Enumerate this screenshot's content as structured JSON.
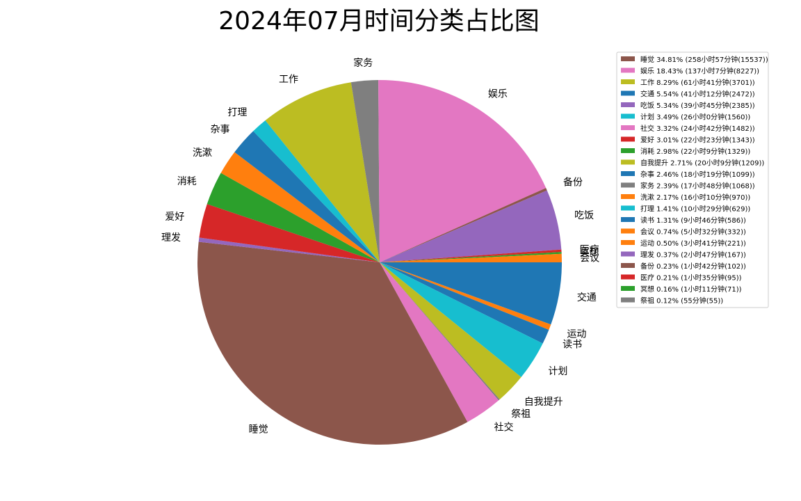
{
  "chart_data": {
    "type": "pie",
    "title": "2024年07月时间分类占比图",
    "start_angle_deg": 0,
    "direction": "clockwise",
    "legend_position": "top-right",
    "slices": [
      {
        "label": "睡觉",
        "value": 15537,
        "percent": 34.81,
        "legend": "睡觉 34.81% (258小时57分钟(15537))",
        "color": "#8c564b"
      },
      {
        "label": "娱乐",
        "value": 8227,
        "percent": 18.43,
        "legend": "娱乐 18.43% (137小时7分钟(8227))",
        "color": "#e377c2"
      },
      {
        "label": "工作",
        "value": 3701,
        "percent": 8.29,
        "legend": "工作 8.29% (61小时41分钟(3701))",
        "color": "#bcbd22"
      },
      {
        "label": "交通",
        "value": 2472,
        "percent": 5.54,
        "legend": "交通 5.54% (41小时12分钟(2472))",
        "color": "#1f77b4"
      },
      {
        "label": "吃饭",
        "value": 2385,
        "percent": 5.34,
        "legend": "吃饭 5.34% (39小时45分钟(2385))",
        "color": "#9467bd"
      },
      {
        "label": "计划",
        "value": 1560,
        "percent": 3.49,
        "legend": "计划 3.49% (26小时0分钟(1560))",
        "color": "#17becf"
      },
      {
        "label": "社交",
        "value": 1482,
        "percent": 3.32,
        "legend": "社交 3.32% (24小时42分钟(1482))",
        "color": "#e377c2"
      },
      {
        "label": "爱好",
        "value": 1343,
        "percent": 3.01,
        "legend": "爱好 3.01% (22小时23分钟(1343))",
        "color": "#d62728"
      },
      {
        "label": "消耗",
        "value": 1329,
        "percent": 2.98,
        "legend": "消耗 2.98% (22小时9分钟(1329))",
        "color": "#2ca02c"
      },
      {
        "label": "自我提升",
        "value": 1209,
        "percent": 2.71,
        "legend": "自我提升 2.71% (20小时9分钟(1209))",
        "color": "#bcbd22"
      },
      {
        "label": "杂事",
        "value": 1099,
        "percent": 2.46,
        "legend": "杂事 2.46% (18小时19分钟(1099))",
        "color": "#1f77b4"
      },
      {
        "label": "家务",
        "value": 1068,
        "percent": 2.39,
        "legend": "家务 2.39% (17小时48分钟(1068))",
        "color": "#7f7f7f"
      },
      {
        "label": "洗漱",
        "value": 970,
        "percent": 2.17,
        "legend": "洗漱 2.17% (16小时10分钟(970))",
        "color": "#ff7f0e"
      },
      {
        "label": "打理",
        "value": 629,
        "percent": 1.41,
        "legend": "打理 1.41% (10小时29分钟(629))",
        "color": "#17becf"
      },
      {
        "label": "读书",
        "value": 586,
        "percent": 1.31,
        "legend": "读书 1.31% (9小时46分钟(586))",
        "color": "#1f77b4"
      },
      {
        "label": "会议",
        "value": 332,
        "percent": 0.74,
        "legend": "会议 0.74% (5小时32分钟(332))",
        "color": "#ff7f0e"
      },
      {
        "label": "运动",
        "value": 221,
        "percent": 0.5,
        "legend": "运动 0.50% (3小时41分钟(221))",
        "color": "#ff7f0e"
      },
      {
        "label": "理发",
        "value": 167,
        "percent": 0.37,
        "legend": "理发 0.37% (2小时47分钟(167))",
        "color": "#9467bd"
      },
      {
        "label": "备份",
        "value": 102,
        "percent": 0.23,
        "legend": "备份 0.23% (1小时42分钟(102))",
        "color": "#8c564b"
      },
      {
        "label": "医疗",
        "value": 95,
        "percent": 0.21,
        "legend": "医疗 0.21% (1小时35分钟(95))",
        "color": "#d62728"
      },
      {
        "label": "冥想",
        "value": 71,
        "percent": 0.16,
        "legend": "冥想 0.16% (1小时11分钟(71))",
        "color": "#2ca02c"
      },
      {
        "label": "祭祖",
        "value": 55,
        "percent": 0.12,
        "legend": "祭祖 0.12% (55分钟(55))",
        "color": "#7f7f7f"
      }
    ],
    "pie_order": [
      "交通",
      "运动",
      "读书",
      "计划",
      "自我提升",
      "祭祖",
      "社交",
      "睡觉",
      "理发",
      "爱好",
      "消耗",
      "洗漱",
      "杂事",
      "打理",
      "工作",
      "家务",
      "娱乐",
      "备份",
      "吃饭",
      "医疗",
      "冥想",
      "会议"
    ]
  }
}
